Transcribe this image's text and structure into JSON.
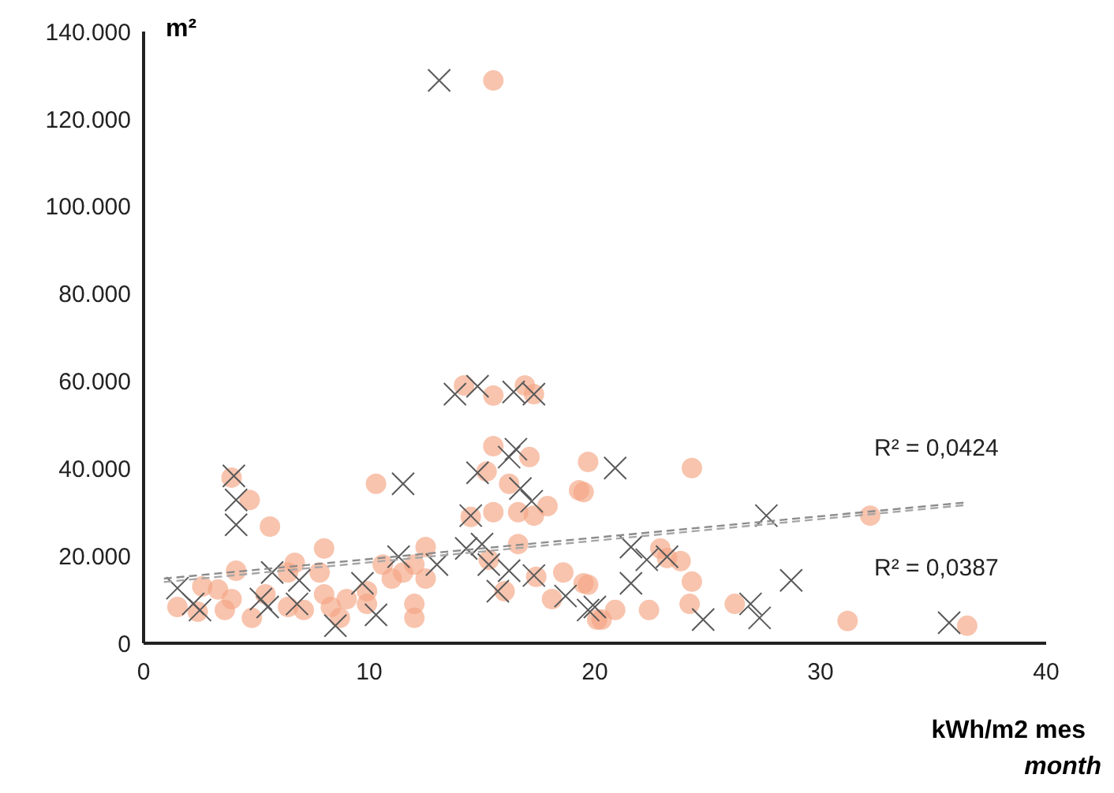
{
  "chart_data": {
    "type": "scatter",
    "ylabel": "m²",
    "xlabel": "kWh/m2 mes",
    "annotations": [
      "R² = 0,0424",
      "R² = 0,0387",
      "month"
    ],
    "xlim": [
      0,
      40
    ],
    "xticks": [
      0,
      10,
      20,
      30,
      40
    ],
    "ylim": [
      0,
      140000
    ],
    "yticks": [
      {
        "value": 0,
        "label": "0"
      },
      {
        "value": 20000,
        "label": "20.000"
      },
      {
        "value": 40000,
        "label": "40.000"
      },
      {
        "value": 60000,
        "label": "60.000"
      },
      {
        "value": 80000,
        "label": "80.000"
      },
      {
        "value": 100000,
        "label": "100.000"
      },
      {
        "value": 120000,
        "label": "120.000"
      },
      {
        "value": 140000,
        "label": "140.000"
      }
    ],
    "grid": false,
    "series": [
      {
        "marker": "circle",
        "color": "#f4a582",
        "x": [
          15.5,
          14.2,
          15.5,
          16.9,
          17.3,
          15.5,
          15.2,
          17.1,
          16.2,
          19.7,
          19.3,
          17.9,
          17.3,
          16.6,
          15.5,
          14.5,
          16.6,
          15.3,
          16.0,
          17.4,
          18.6,
          18.1,
          19.5,
          20.1,
          3.9,
          4.7,
          5.6,
          4.1,
          10.3,
          6.7,
          1.5,
          2.6,
          3.3,
          3.9,
          3.6,
          2.4,
          4.8,
          5.4,
          6.4,
          6.4,
          7.1,
          8.0,
          7.8,
          8.0,
          8.3,
          8.7,
          9.0,
          9.9,
          9.9,
          10.6,
          11.0,
          11.5,
          12.0,
          12.5,
          12.5,
          12.0,
          12.0,
          24.3,
          19.5,
          32.2,
          22.9,
          23.2,
          23.8,
          24.3,
          24.2,
          26.2,
          19.7,
          20.9,
          20.3,
          22.4,
          31.2,
          36.5
        ],
        "values": [
          128800,
          59000,
          56700,
          59000,
          57000,
          45100,
          39300,
          42600,
          36500,
          41500,
          35000,
          31400,
          29200,
          30000,
          30000,
          28900,
          22700,
          19100,
          11900,
          15200,
          16200,
          10100,
          13700,
          5400,
          37900,
          32800,
          26700,
          16600,
          36500,
          18400,
          8300,
          13000,
          12300,
          10100,
          7600,
          7200,
          5800,
          11200,
          8300,
          16200,
          7600,
          21700,
          16200,
          11200,
          8300,
          5800,
          10100,
          11900,
          9000,
          18000,
          14800,
          16200,
          18000,
          22000,
          14800,
          9000,
          5800,
          40100,
          34600,
          29200,
          21700,
          19500,
          18800,
          14100,
          9000,
          9000,
          13400,
          7600,
          5400,
          7600,
          5100,
          4000
        ]
      },
      {
        "marker": "cross",
        "color": "#595959",
        "x": [
          13.1,
          13.8,
          14.8,
          16.4,
          17.3,
          4.0,
          4.1,
          4.1,
          11.5,
          1.5,
          2.2,
          2.5,
          5.7,
          5.2,
          5.5,
          6.9,
          6.8,
          8.5,
          9.7,
          10.3,
          11.3,
          13.0,
          14.8,
          16.5,
          16.2,
          16.7,
          17.2,
          14.5,
          15.0,
          14.3,
          15.3,
          15.7,
          16.2,
          17.3,
          18.7,
          19.7,
          20.9,
          27.6,
          21.6,
          22.3,
          23.2,
          21.6,
          20.0,
          28.7,
          26.9,
          24.8,
          27.3,
          35.7
        ],
        "values": [
          128800,
          57000,
          58800,
          57500,
          57000,
          38300,
          32800,
          27100,
          36500,
          12600,
          9000,
          7600,
          16200,
          10100,
          8300,
          14400,
          9000,
          4000,
          13700,
          6500,
          19800,
          18000,
          39000,
          44400,
          42600,
          35400,
          32500,
          29200,
          22700,
          21700,
          18000,
          11900,
          16600,
          15500,
          10800,
          7600,
          40100,
          29200,
          22000,
          19100,
          19800,
          13700,
          8300,
          14400,
          9000,
          5400,
          5800,
          4700
        ]
      },
      {
        "type": "line",
        "marker": "none",
        "line_style": "dashed",
        "color": "#8c8c8c",
        "x": [
          0.9,
          36.4
        ],
        "values": [
          14800,
          32200
        ]
      },
      {
        "type": "line",
        "marker": "none",
        "line_style": "dashed",
        "color": "#a6a6a6",
        "x": [
          0.9,
          36.4
        ],
        "values": [
          14000,
          31600
        ]
      }
    ]
  }
}
